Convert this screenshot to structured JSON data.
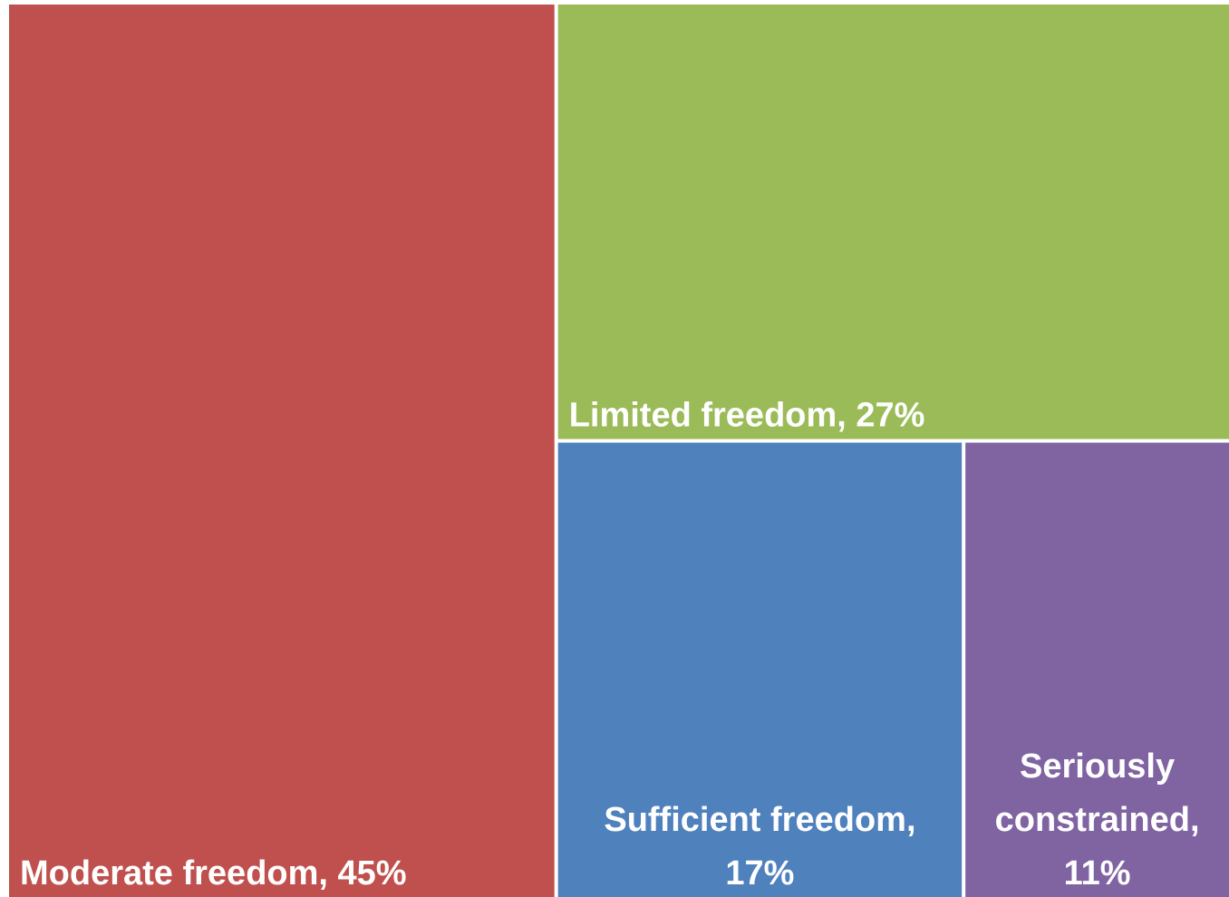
{
  "chart_data": {
    "type": "treemap",
    "categories": [
      "Moderate freedom",
      "Limited freedom",
      "Sufficient freedom",
      "Seriously constrained"
    ],
    "values": [
      45,
      27,
      17,
      11
    ],
    "labels": [
      [
        "Moderate freedom, 45%"
      ],
      [
        "Limited freedom, 27%"
      ],
      [
        "Sufficient freedom,",
        "17%"
      ],
      [
        "Seriously",
        "constrained,",
        "11%"
      ]
    ],
    "colors": [
      "#c0504d",
      "#9bbb59",
      "#4f81bd",
      "#8064a2"
    ]
  }
}
